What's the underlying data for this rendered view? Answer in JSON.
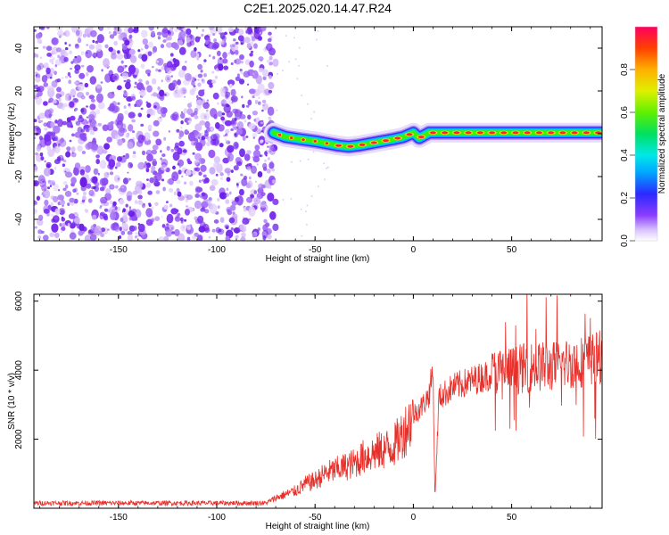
{
  "title": "C2E1.2025.020.14.47.R24",
  "colors": {
    "noise": "#7a2cf0",
    "noise_light": "#c9a6f8",
    "snr_line": "#e8302a",
    "background": "#ffffff"
  },
  "chart_data": [
    {
      "type": "heatmap",
      "xlabel": "Height of straight line (km)",
      "ylabel": "Frequency (Hz)",
      "xlim": [
        -193,
        96
      ],
      "ylim": [
        -50,
        50
      ],
      "x_ticks": [
        -150,
        -100,
        -50,
        0,
        50
      ],
      "y_ticks": [
        -40,
        -20,
        0,
        20,
        40
      ],
      "noise_region_x": [
        -193,
        -70
      ],
      "signal_track": {
        "x": [
          -71,
          -65,
          -58,
          -50,
          -44,
          -38,
          -33,
          -28,
          -22,
          -16,
          -10,
          -5,
          0,
          3,
          8,
          15,
          25,
          40,
          60,
          80,
          95
        ],
        "y": [
          0.5,
          -1.5,
          -2.5,
          -3.5,
          -4.5,
          -5.5,
          -6,
          -5.5,
          -4.5,
          -3.5,
          -2.5,
          -1.5,
          0.5,
          -2,
          0.5,
          0.5,
          0.5,
          0.5,
          0.5,
          0.5,
          0.5
        ]
      },
      "colorbar": {
        "label": "Normalized spectral amplitude",
        "range": [
          0,
          1
        ],
        "ticks": [
          "0.0",
          "0.2",
          "0.4",
          "0.6",
          "0.8"
        ]
      }
    },
    {
      "type": "line",
      "xlabel": "Height of straight line (km)",
      "ylabel": "SNR (10 * v/v)",
      "xlim": [
        -193,
        96
      ],
      "ylim": [
        0,
        6200
      ],
      "x_ticks": [
        -150,
        -100,
        -50,
        0,
        50
      ],
      "y_ticks": [
        2000,
        4000,
        6000
      ],
      "series": [
        {
          "x": [
            -193,
            -150,
            -100,
            -75,
            -70,
            -60,
            -55,
            -50,
            -45,
            -40,
            -35,
            -30,
            -25,
            -20,
            -15,
            -10,
            -5,
            0,
            5,
            8,
            10,
            11,
            13,
            20,
            30,
            40,
            50,
            60,
            70,
            80,
            90,
            96
          ],
          "y": [
            150,
            150,
            150,
            150,
            300,
            500,
            700,
            800,
            1000,
            1100,
            1200,
            1300,
            1500,
            1600,
            1700,
            1800,
            2200,
            2700,
            3000,
            3300,
            4000,
            300,
            3200,
            3500,
            3700,
            3900,
            4000,
            4100,
            4100,
            4200,
            4300,
            4400
          ]
        }
      ]
    }
  ]
}
